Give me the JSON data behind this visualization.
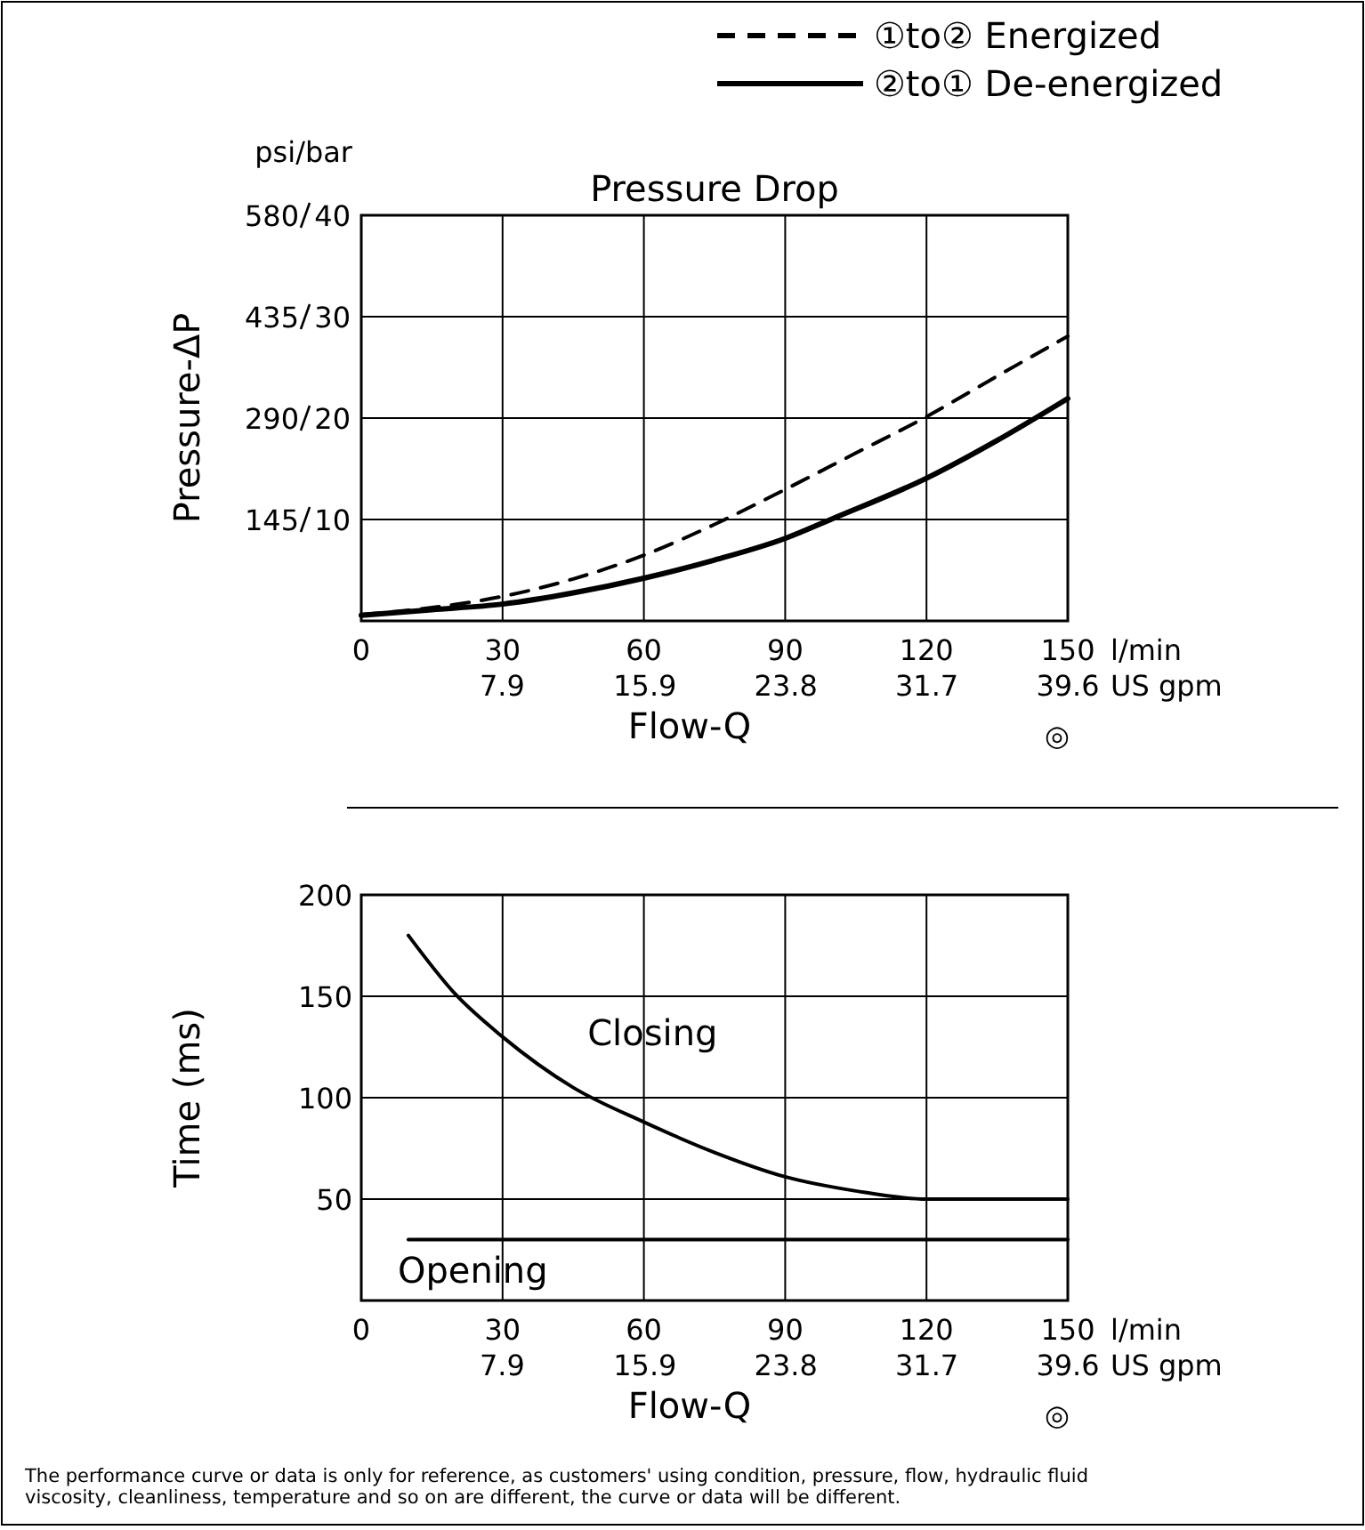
{
  "chart_data": [
    {
      "type": "line",
      "title": "Pressure Drop",
      "xlabel": "Flow-Q",
      "ylabel": "Pressure-ΔP",
      "xlim": [
        0,
        150
      ],
      "xticks": [
        0,
        30,
        60,
        90,
        120,
        150
      ],
      "x2lim": [
        0,
        39.6
      ],
      "x2ticks": [
        7.9,
        15.9,
        23.8,
        31.7,
        39.6
      ],
      "ylim": [
        0,
        580
      ],
      "yticks": [
        145,
        290,
        435,
        580
      ],
      "y2lim": [
        0,
        40
      ],
      "y2ticks": [
        10,
        20,
        30,
        40
      ],
      "grid": true,
      "legend": "top right",
      "marker": "none",
      "annotations": [
        "psi/bar",
        "l/min",
        "US gpm",
        "◎"
      ],
      "series": [
        {
          "name": "①to② Energized",
          "color": "#000000",
          "line_style": "dashed",
          "x": [
            0,
            15,
            30,
            45,
            60,
            75,
            90,
            105,
            120,
            135,
            150
          ],
          "values": [
            9,
            19,
            35,
            60,
            94,
            138,
            188,
            240,
            292,
            350,
            407
          ]
        },
        {
          "name": "②to① De-energized",
          "color": "#000000",
          "line_style": "solid",
          "x": [
            0,
            15,
            30,
            45,
            60,
            75,
            90,
            100,
            120,
            135,
            150
          ],
          "values": [
            8,
            16,
            24,
            40,
            61,
            87,
            118,
            146,
            204,
            258,
            318
          ]
        }
      ]
    },
    {
      "type": "line",
      "xlabel": "Flow-Q",
      "ylabel": "Time (ms)",
      "xlim": [
        0,
        150
      ],
      "xticks": [
        0,
        30,
        60,
        90,
        120,
        150
      ],
      "x2lim": [
        0,
        39.6
      ],
      "x2ticks": [
        7.9,
        15.9,
        23.8,
        31.7,
        39.6
      ],
      "ylim": [
        0,
        200
      ],
      "yticks": [
        50,
        100,
        150,
        200
      ],
      "grid": true,
      "legend": false,
      "marker": "none",
      "annotations": [
        "l/min",
        "US gpm",
        "◎",
        "The performance curve or data is only for reference, as customers' using condition, pressure, flow, hydraulic fluid viscosity, cleanliness, temperature and so on are different, the curve or data will be different."
      ],
      "series": [
        {
          "name": "Closing",
          "color": "#000000",
          "line_style": "solid",
          "x": [
            10,
            20,
            30,
            45,
            60,
            75,
            90,
            105,
            120,
            135,
            150
          ],
          "values": [
            180,
            151,
            130,
            105,
            88,
            73,
            61,
            54,
            50,
            50,
            50
          ]
        },
        {
          "name": "Opening",
          "color": "#000000",
          "line_style": "solid",
          "x": [
            10,
            150
          ],
          "values": [
            30,
            30
          ]
        }
      ]
    }
  ]
}
